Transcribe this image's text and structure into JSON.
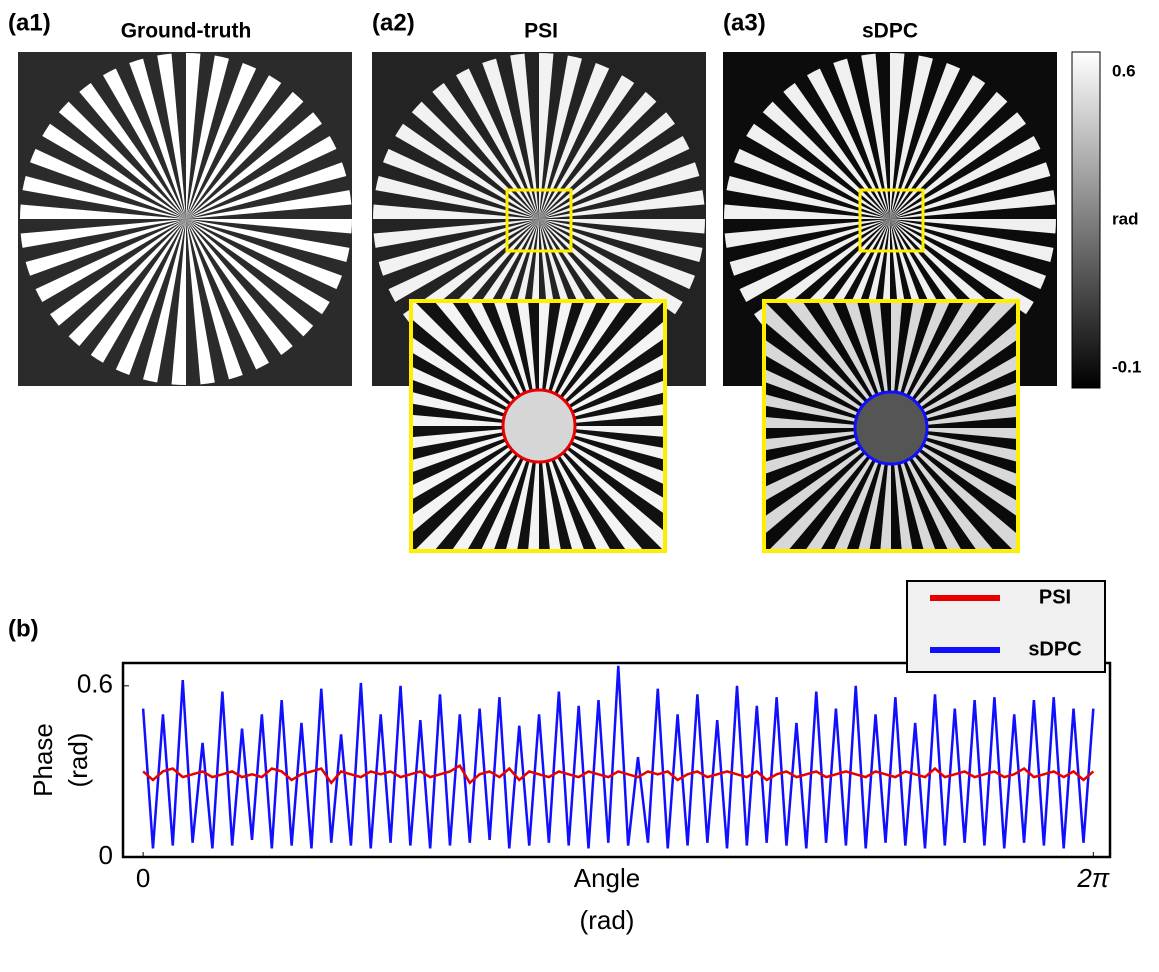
{
  "panels": [
    {
      "label": "(a1)",
      "title": "Ground-truth"
    },
    {
      "label": "(a2)",
      "title": "PSI"
    },
    {
      "label": "(a3)",
      "title": "sDPC"
    }
  ],
  "colorbar": {
    "label": "rad",
    "lim": [
      -0.1,
      0.6
    ],
    "ticks": [
      0.6,
      -0.1
    ]
  },
  "chart_data": {
    "type": "line",
    "panel_label": "(b)",
    "xlabel": [
      "Angle",
      "(rad)"
    ],
    "ylabel": [
      "Phase",
      "(rad)"
    ],
    "x": [
      0,
      0.065,
      0.131,
      0.196,
      0.262,
      0.327,
      0.393,
      0.458,
      0.524,
      0.589,
      0.654,
      0.72,
      0.785,
      0.851,
      0.916,
      0.982,
      1.047,
      1.113,
      1.178,
      1.244,
      1.309,
      1.374,
      1.44,
      1.505,
      1.571,
      1.636,
      1.702,
      1.767,
      1.833,
      1.898,
      1.963,
      2.029,
      2.094,
      2.16,
      2.225,
      2.291,
      2.356,
      2.421,
      2.487,
      2.553,
      2.618,
      2.683,
      2.749,
      2.814,
      2.88,
      2.945,
      3.011,
      3.076,
      3.142,
      3.207,
      3.272,
      3.338,
      3.403,
      3.469,
      3.534,
      3.6,
      3.665,
      3.731,
      3.796,
      3.861,
      3.927,
      3.992,
      4.058,
      4.123,
      4.189,
      4.254,
      4.32,
      4.385,
      4.451,
      4.516,
      4.581,
      4.647,
      4.712,
      4.778,
      4.843,
      4.909,
      4.974,
      5.04,
      5.105,
      5.17,
      5.236,
      5.301,
      5.367,
      5.432,
      5.498,
      5.563,
      5.629,
      5.694,
      5.76,
      5.825,
      5.89,
      5.956,
      6.021,
      6.087,
      6.152,
      6.218,
      6.283
    ],
    "series": [
      {
        "name": "PSI",
        "color": "#e80000",
        "values": [
          0.3,
          0.27,
          0.3,
          0.31,
          0.28,
          0.29,
          0.3,
          0.28,
          0.29,
          0.3,
          0.28,
          0.29,
          0.28,
          0.31,
          0.3,
          0.27,
          0.29,
          0.3,
          0.31,
          0.26,
          0.3,
          0.29,
          0.28,
          0.3,
          0.29,
          0.3,
          0.28,
          0.29,
          0.3,
          0.28,
          0.29,
          0.3,
          0.32,
          0.26,
          0.29,
          0.3,
          0.28,
          0.31,
          0.27,
          0.3,
          0.29,
          0.28,
          0.3,
          0.29,
          0.28,
          0.3,
          0.29,
          0.28,
          0.3,
          0.29,
          0.28,
          0.3,
          0.29,
          0.3,
          0.27,
          0.29,
          0.3,
          0.28,
          0.29,
          0.3,
          0.29,
          0.28,
          0.3,
          0.27,
          0.29,
          0.3,
          0.28,
          0.29,
          0.3,
          0.28,
          0.29,
          0.3,
          0.29,
          0.28,
          0.3,
          0.29,
          0.28,
          0.3,
          0.29,
          0.28,
          0.31,
          0.28,
          0.29,
          0.3,
          0.28,
          0.29,
          0.3,
          0.28,
          0.29,
          0.31,
          0.28,
          0.29,
          0.3,
          0.28,
          0.3,
          0.27,
          0.3
        ]
      },
      {
        "name": "sDPC",
        "color": "#1010ff",
        "values": [
          0.52,
          0.03,
          0.5,
          0.04,
          0.62,
          0.05,
          0.4,
          0.03,
          0.58,
          0.04,
          0.45,
          0.06,
          0.5,
          0.03,
          0.55,
          0.04,
          0.47,
          0.03,
          0.59,
          0.05,
          0.43,
          0.04,
          0.61,
          0.03,
          0.5,
          0.05,
          0.6,
          0.04,
          0.48,
          0.03,
          0.57,
          0.04,
          0.5,
          0.05,
          0.52,
          0.06,
          0.56,
          0.03,
          0.46,
          0.04,
          0.5,
          0.05,
          0.58,
          0.04,
          0.53,
          0.03,
          0.55,
          0.05,
          0.67,
          0.04,
          0.35,
          0.05,
          0.59,
          0.03,
          0.5,
          0.04,
          0.57,
          0.05,
          0.48,
          0.03,
          0.6,
          0.04,
          0.53,
          0.05,
          0.56,
          0.04,
          0.47,
          0.03,
          0.58,
          0.05,
          0.52,
          0.04,
          0.6,
          0.03,
          0.5,
          0.05,
          0.56,
          0.04,
          0.47,
          0.03,
          0.57,
          0.04,
          0.52,
          0.05,
          0.55,
          0.04,
          0.56,
          0.03,
          0.5,
          0.05,
          0.55,
          0.04,
          0.56,
          0.03,
          0.52,
          0.05,
          0.52
        ]
      }
    ],
    "xlim": [
      -0.1,
      6.38
    ],
    "ylim": [
      0,
      0.68
    ],
    "xticks": [
      0,
      {
        "value": 6.283,
        "label": "2π"
      }
    ],
    "yticks": [
      0,
      0.6
    ],
    "legend": "top-right"
  }
}
